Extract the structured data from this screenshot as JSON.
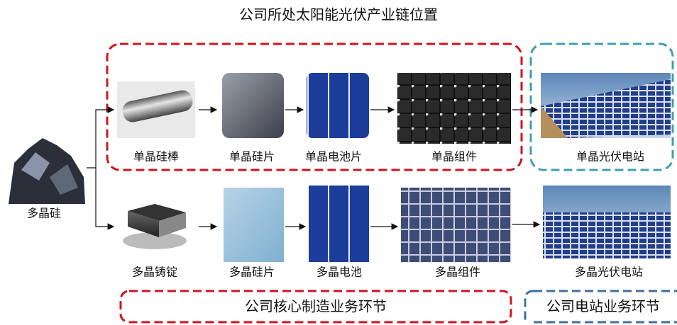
{
  "title": "公司所处太阳能光伏产业链位置",
  "source": {
    "label": "多晶硅"
  },
  "rows": [
    {
      "nodes": [
        {
          "label": "单晶硅棒"
        },
        {
          "label": "单晶硅片"
        },
        {
          "label": "单晶电池片"
        },
        {
          "label": "单晶组件"
        },
        {
          "label": "单晶光伏电站"
        }
      ]
    },
    {
      "nodes": [
        {
          "label": "多晶铸锭"
        },
        {
          "label": "多晶硅片"
        },
        {
          "label": "多晶电池"
        },
        {
          "label": "多晶组件"
        },
        {
          "label": "多晶光伏电站"
        }
      ]
    }
  ],
  "segments": [
    {
      "label": "公司核心制造业务环节"
    },
    {
      "label": "公司电站业务环节"
    }
  ]
}
